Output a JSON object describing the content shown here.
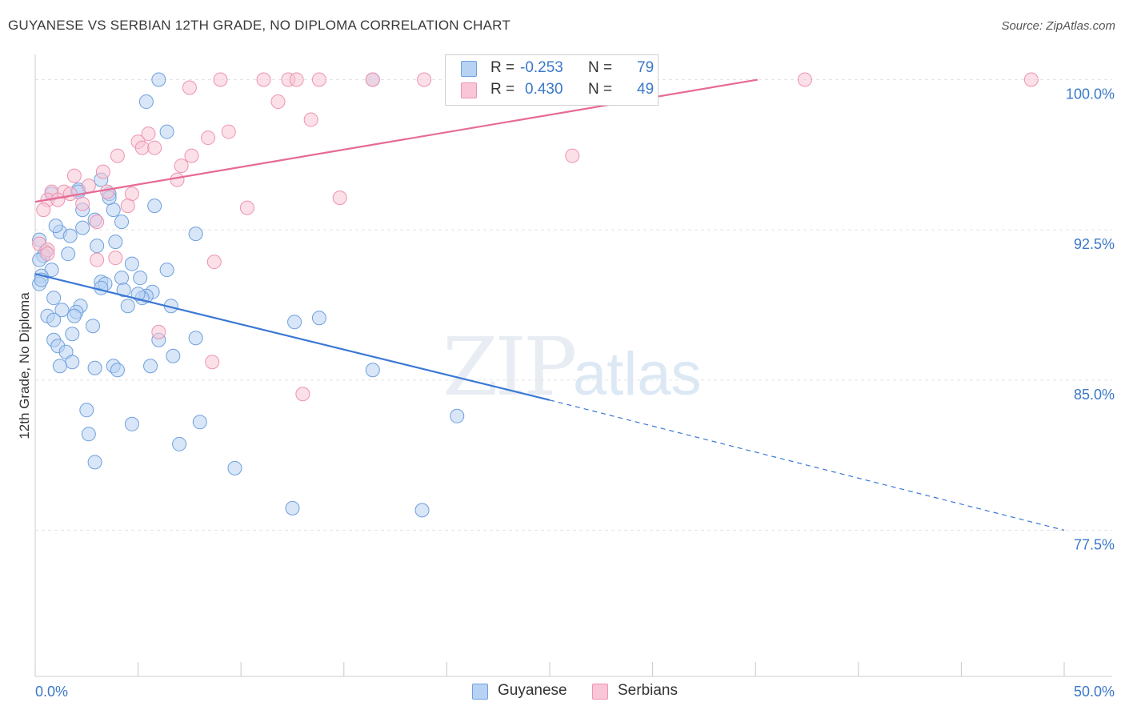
{
  "title": "GUYANESE VS SERBIAN 12TH GRADE, NO DIPLOMA CORRELATION CHART",
  "source": "Source: ZipAtlas.com",
  "watermark": {
    "zip": "ZIP",
    "atlas": "atlas"
  },
  "colors": {
    "guyanese_fill": "#b8d2f3",
    "guyanese_stroke": "#6fa0dd",
    "guyanese_line": "#3b78d4",
    "serbians_fill": "#f8c6d6",
    "serbians_stroke": "#ee93b1",
    "serbians_line": "#e66a94",
    "tick_label": "#3b78c9",
    "grid": "#e4e4e4"
  },
  "stats": [
    {
      "r_label": "R =",
      "r_value": "-0.253",
      "n_label": "N =",
      "n_value": "79"
    },
    {
      "r_label": "R =",
      "r_value": "0.430",
      "n_label": "N =",
      "n_value": "49"
    }
  ],
  "legend": [
    "Guyanese",
    "Serbians"
  ],
  "chart_data": {
    "type": "scatter",
    "title": "GUYANESE VS SERBIAN 12TH GRADE, NO DIPLOMA CORRELATION CHART",
    "xlabel": "",
    "ylabel": "12th Grade, No Diploma",
    "xlim": [
      0,
      50
    ],
    "ylim": [
      70.2,
      101.5
    ],
    "x_tick_labels": [
      "0.0%",
      "50.0%"
    ],
    "y_ticks": [
      77.5,
      85.0,
      92.5,
      100.0
    ],
    "y_tick_labels": [
      "77.5%",
      "85.0%",
      "92.5%",
      "100.0%"
    ],
    "grid": true,
    "legend_position": "bottom-center",
    "series": [
      {
        "name": "Guyanese",
        "trend": {
          "x": [
            0,
            25
          ],
          "y": [
            90.3,
            84.0
          ],
          "dashed_to": [
            50,
            77.5
          ]
        },
        "points": [
          [
            6.0,
            100.0
          ],
          [
            16.4,
            100.0
          ],
          [
            5.4,
            98.9
          ],
          [
            6.4,
            97.4
          ],
          [
            3.2,
            95.0
          ],
          [
            2.1,
            94.5
          ],
          [
            3.6,
            94.3
          ],
          [
            0.8,
            94.3
          ],
          [
            5.8,
            93.7
          ],
          [
            2.3,
            93.5
          ],
          [
            3.8,
            93.5
          ],
          [
            2.9,
            93.0
          ],
          [
            4.2,
            92.9
          ],
          [
            2.3,
            92.6
          ],
          [
            1.2,
            92.4
          ],
          [
            7.8,
            92.3
          ],
          [
            1.7,
            92.2
          ],
          [
            0.2,
            92.0
          ],
          [
            3.9,
            91.9
          ],
          [
            3.0,
            91.7
          ],
          [
            0.5,
            91.4
          ],
          [
            1.6,
            91.3
          ],
          [
            0.4,
            91.2
          ],
          [
            4.7,
            90.8
          ],
          [
            6.4,
            90.5
          ],
          [
            0.8,
            90.5
          ],
          [
            0.3,
            90.2
          ],
          [
            4.2,
            90.1
          ],
          [
            5.1,
            90.1
          ],
          [
            0.2,
            89.8
          ],
          [
            3.2,
            89.9
          ],
          [
            3.4,
            89.8
          ],
          [
            3.2,
            89.6
          ],
          [
            4.3,
            89.5
          ],
          [
            5.7,
            89.4
          ],
          [
            5.4,
            89.2
          ],
          [
            0.9,
            89.1
          ],
          [
            5.2,
            89.1
          ],
          [
            2.2,
            88.7
          ],
          [
            1.3,
            88.5
          ],
          [
            6.6,
            88.7
          ],
          [
            4.5,
            88.7
          ],
          [
            2.0,
            88.4
          ],
          [
            0.6,
            88.2
          ],
          [
            1.9,
            88.2
          ],
          [
            0.9,
            88.0
          ],
          [
            13.8,
            88.1
          ],
          [
            12.6,
            87.9
          ],
          [
            2.8,
            87.7
          ],
          [
            1.8,
            87.3
          ],
          [
            7.8,
            87.1
          ],
          [
            6.0,
            87.0
          ],
          [
            0.9,
            87.0
          ],
          [
            1.1,
            86.7
          ],
          [
            1.5,
            86.4
          ],
          [
            6.7,
            86.2
          ],
          [
            1.8,
            85.9
          ],
          [
            1.2,
            85.7
          ],
          [
            3.8,
            85.7
          ],
          [
            5.6,
            85.7
          ],
          [
            2.9,
            85.6
          ],
          [
            4.0,
            85.5
          ],
          [
            16.4,
            85.5
          ],
          [
            2.5,
            83.5
          ],
          [
            20.5,
            83.2
          ],
          [
            8.0,
            82.9
          ],
          [
            4.7,
            82.8
          ],
          [
            2.6,
            82.3
          ],
          [
            7.0,
            81.8
          ],
          [
            2.9,
            80.9
          ],
          [
            9.7,
            80.6
          ],
          [
            12.5,
            78.6
          ],
          [
            18.8,
            78.5
          ],
          [
            0.2,
            91.0
          ],
          [
            0.3,
            90.0
          ],
          [
            1.0,
            92.7
          ],
          [
            2.1,
            94.4
          ],
          [
            3.6,
            94.1
          ],
          [
            5.0,
            89.3
          ]
        ]
      },
      {
        "name": "Serbians",
        "trend": {
          "x": [
            0,
            35.1
          ],
          "y": [
            93.9,
            100.0
          ]
        },
        "points": [
          [
            9.0,
            100.0
          ],
          [
            11.1,
            100.0
          ],
          [
            12.3,
            100.0
          ],
          [
            12.7,
            100.0
          ],
          [
            13.8,
            100.0
          ],
          [
            16.4,
            100.0
          ],
          [
            18.9,
            100.0
          ],
          [
            20.5,
            100.0
          ],
          [
            37.4,
            100.0
          ],
          [
            48.4,
            100.0
          ],
          [
            7.5,
            99.6
          ],
          [
            11.8,
            98.9
          ],
          [
            13.4,
            98.0
          ],
          [
            9.4,
            97.4
          ],
          [
            5.5,
            97.3
          ],
          [
            8.4,
            97.1
          ],
          [
            5.0,
            96.9
          ],
          [
            5.2,
            96.6
          ],
          [
            5.8,
            96.6
          ],
          [
            4.0,
            96.2
          ],
          [
            7.6,
            96.2
          ],
          [
            26.1,
            96.2
          ],
          [
            7.1,
            95.7
          ],
          [
            3.3,
            95.4
          ],
          [
            1.9,
            95.2
          ],
          [
            6.9,
            95.0
          ],
          [
            2.6,
            94.7
          ],
          [
            0.8,
            94.4
          ],
          [
            1.4,
            94.4
          ],
          [
            3.5,
            94.4
          ],
          [
            4.7,
            94.3
          ],
          [
            14.8,
            94.1
          ],
          [
            0.6,
            94.0
          ],
          [
            1.1,
            94.0
          ],
          [
            1.7,
            94.3
          ],
          [
            2.3,
            93.8
          ],
          [
            4.5,
            93.7
          ],
          [
            10.3,
            93.6
          ],
          [
            0.4,
            93.5
          ],
          [
            3.0,
            92.9
          ],
          [
            0.2,
            91.8
          ],
          [
            0.6,
            91.5
          ],
          [
            3.9,
            91.1
          ],
          [
            8.7,
            90.9
          ],
          [
            0.6,
            91.3
          ],
          [
            6.0,
            87.4
          ],
          [
            8.6,
            85.9
          ],
          [
            13.0,
            84.3
          ],
          [
            3.0,
            91.0
          ]
        ]
      }
    ]
  }
}
